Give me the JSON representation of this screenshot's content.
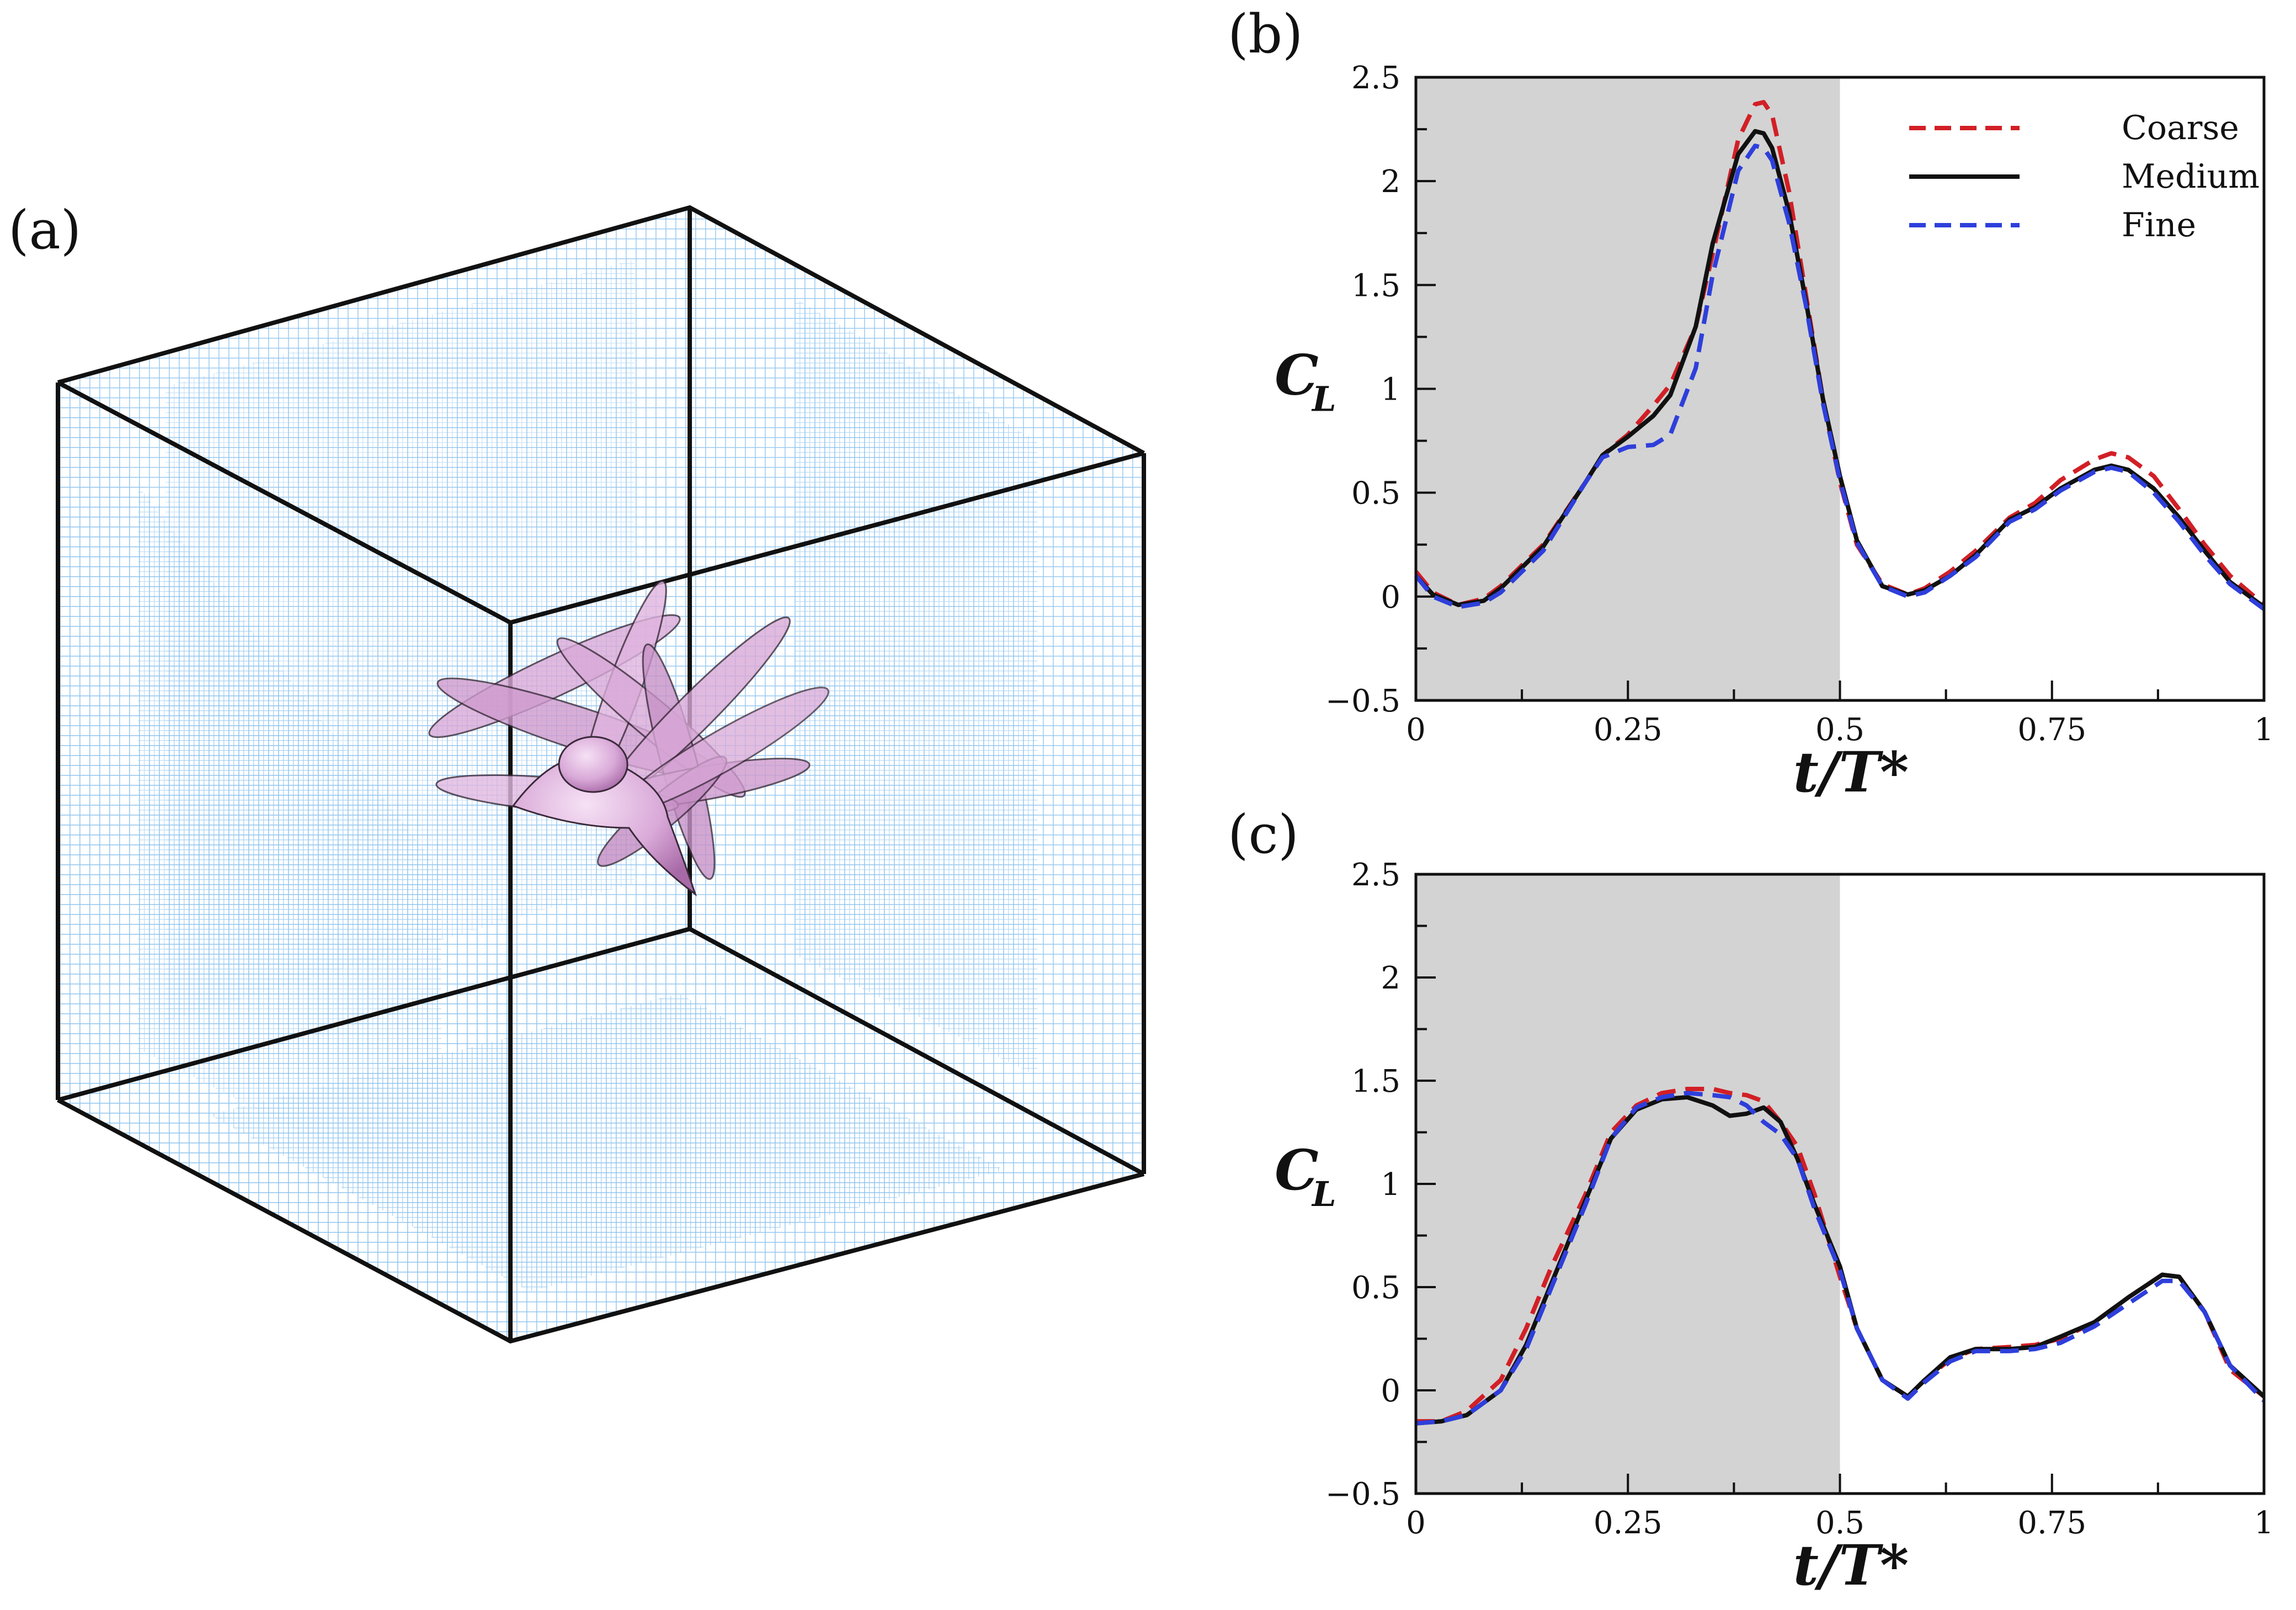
{
  "figure": {
    "panel_a_label": "(a)",
    "mesh_color": "#8fc4ee",
    "body_color": "#d9a9d8"
  },
  "chart_data": [
    {
      "type": "line",
      "panel": "(b)",
      "xlabel": "t/T*",
      "ylabel": "C_L",
      "ylabel_main": "C",
      "ylabel_sub": "L",
      "xlim": [
        0,
        1
      ],
      "ylim": [
        -0.5,
        2.5
      ],
      "xticks": [
        "0",
        "0.25",
        "0.5",
        "0.75",
        "1"
      ],
      "yticks": [
        "−0.5",
        "0",
        "0.5",
        "1",
        "1.5",
        "2",
        "2.5"
      ],
      "shaded_region": [
        0,
        0.5
      ],
      "legend_position": "top-right",
      "series": [
        {
          "name": "Coarse",
          "color": "#d21f26",
          "dash": "dashed",
          "x": [
            0,
            0.02,
            0.05,
            0.08,
            0.1,
            0.15,
            0.2,
            0.22,
            0.25,
            0.28,
            0.3,
            0.33,
            0.35,
            0.38,
            0.4,
            0.41,
            0.42,
            0.44,
            0.46,
            0.48,
            0.5,
            0.52,
            0.55,
            0.58,
            0.6,
            0.63,
            0.66,
            0.7,
            0.73,
            0.76,
            0.8,
            0.82,
            0.84,
            0.87,
            0.9,
            0.93,
            0.96,
            1.0
          ],
          "y": [
            0.12,
            0.02,
            -0.04,
            -0.01,
            0.05,
            0.25,
            0.55,
            0.68,
            0.78,
            0.92,
            1.02,
            1.3,
            1.65,
            2.2,
            2.37,
            2.38,
            2.32,
            1.95,
            1.45,
            0.95,
            0.55,
            0.25,
            0.06,
            0.01,
            0.04,
            0.12,
            0.22,
            0.38,
            0.45,
            0.56,
            0.66,
            0.69,
            0.67,
            0.58,
            0.42,
            0.25,
            0.1,
            -0.04
          ]
        },
        {
          "name": "Medium",
          "color": "#111111",
          "dash": "solid",
          "x": [
            0,
            0.02,
            0.05,
            0.08,
            0.1,
            0.15,
            0.2,
            0.22,
            0.25,
            0.28,
            0.3,
            0.33,
            0.35,
            0.38,
            0.4,
            0.41,
            0.42,
            0.44,
            0.46,
            0.48,
            0.5,
            0.52,
            0.55,
            0.58,
            0.6,
            0.63,
            0.66,
            0.7,
            0.73,
            0.76,
            0.8,
            0.82,
            0.84,
            0.87,
            0.9,
            0.93,
            0.96,
            1.0
          ],
          "y": [
            0.1,
            0.01,
            -0.04,
            -0.02,
            0.04,
            0.24,
            0.55,
            0.68,
            0.77,
            0.87,
            0.97,
            1.3,
            1.7,
            2.13,
            2.24,
            2.23,
            2.16,
            1.85,
            1.42,
            0.95,
            0.58,
            0.27,
            0.05,
            0.01,
            0.03,
            0.1,
            0.2,
            0.37,
            0.43,
            0.52,
            0.61,
            0.63,
            0.61,
            0.52,
            0.38,
            0.22,
            0.07,
            -0.05
          ]
        },
        {
          "name": "Fine",
          "color": "#2e3fdb",
          "dash": "dashed",
          "x": [
            0,
            0.02,
            0.05,
            0.08,
            0.1,
            0.15,
            0.2,
            0.22,
            0.25,
            0.28,
            0.3,
            0.33,
            0.35,
            0.38,
            0.4,
            0.41,
            0.42,
            0.44,
            0.46,
            0.48,
            0.5,
            0.52,
            0.55,
            0.58,
            0.6,
            0.63,
            0.66,
            0.7,
            0.73,
            0.76,
            0.8,
            0.82,
            0.84,
            0.87,
            0.9,
            0.93,
            0.96,
            1.0
          ],
          "y": [
            0.1,
            0.0,
            -0.05,
            -0.03,
            0.02,
            0.22,
            0.55,
            0.67,
            0.72,
            0.73,
            0.78,
            1.1,
            1.55,
            2.05,
            2.17,
            2.16,
            2.1,
            1.8,
            1.4,
            0.93,
            0.56,
            0.26,
            0.05,
            0.0,
            0.02,
            0.1,
            0.19,
            0.36,
            0.42,
            0.51,
            0.6,
            0.62,
            0.6,
            0.5,
            0.36,
            0.2,
            0.06,
            -0.06
          ]
        }
      ],
      "legend": [
        "Coarse",
        "Medium",
        "Fine"
      ]
    },
    {
      "type": "line",
      "panel": "(c)",
      "xlabel": "t/T*",
      "ylabel": "C_L",
      "ylabel_main": "C",
      "ylabel_sub": "L",
      "xlim": [
        0,
        1
      ],
      "ylim": [
        -0.5,
        2.5
      ],
      "xticks": [
        "0",
        "0.25",
        "0.5",
        "0.75",
        "1"
      ],
      "yticks": [
        "−0.5",
        "0",
        "0.5",
        "1",
        "1.5",
        "2",
        "2.5"
      ],
      "shaded_region": [
        0,
        0.5
      ],
      "series": [
        {
          "name": "Coarse",
          "color": "#d21f26",
          "dash": "dashed",
          "x": [
            0,
            0.03,
            0.06,
            0.1,
            0.13,
            0.16,
            0.2,
            0.23,
            0.26,
            0.29,
            0.32,
            0.35,
            0.37,
            0.39,
            0.41,
            0.43,
            0.45,
            0.47,
            0.5,
            0.52,
            0.55,
            0.58,
            0.6,
            0.63,
            0.66,
            0.7,
            0.73,
            0.76,
            0.8,
            0.84,
            0.88,
            0.9,
            0.93,
            0.96,
            1.0
          ],
          "y": [
            -0.15,
            -0.15,
            -0.1,
            0.05,
            0.3,
            0.6,
            0.95,
            1.25,
            1.38,
            1.44,
            1.46,
            1.46,
            1.44,
            1.43,
            1.4,
            1.3,
            1.18,
            0.95,
            0.55,
            0.3,
            0.05,
            -0.03,
            0.05,
            0.15,
            0.2,
            0.21,
            0.22,
            0.25,
            0.33,
            0.45,
            0.56,
            0.55,
            0.38,
            0.1,
            -0.03
          ]
        },
        {
          "name": "Medium",
          "color": "#111111",
          "dash": "solid",
          "x": [
            0,
            0.03,
            0.06,
            0.1,
            0.13,
            0.16,
            0.2,
            0.23,
            0.26,
            0.29,
            0.32,
            0.35,
            0.37,
            0.39,
            0.41,
            0.43,
            0.45,
            0.47,
            0.5,
            0.52,
            0.55,
            0.58,
            0.6,
            0.63,
            0.66,
            0.7,
            0.73,
            0.76,
            0.8,
            0.84,
            0.88,
            0.9,
            0.93,
            0.96,
            1.0
          ],
          "y": [
            -0.16,
            -0.15,
            -0.12,
            0.0,
            0.22,
            0.52,
            0.92,
            1.22,
            1.36,
            1.41,
            1.42,
            1.38,
            1.33,
            1.34,
            1.37,
            1.3,
            1.12,
            0.9,
            0.6,
            0.3,
            0.05,
            -0.03,
            0.05,
            0.16,
            0.2,
            0.2,
            0.21,
            0.26,
            0.33,
            0.45,
            0.56,
            0.55,
            0.38,
            0.12,
            -0.03
          ]
        },
        {
          "name": "Fine",
          "color": "#2e3fdb",
          "dash": "dashed",
          "x": [
            0,
            0.03,
            0.06,
            0.1,
            0.13,
            0.16,
            0.2,
            0.23,
            0.26,
            0.29,
            0.32,
            0.35,
            0.37,
            0.39,
            0.41,
            0.43,
            0.45,
            0.47,
            0.5,
            0.52,
            0.55,
            0.58,
            0.6,
            0.63,
            0.66,
            0.7,
            0.73,
            0.76,
            0.8,
            0.84,
            0.88,
            0.9,
            0.93,
            0.96,
            1.0
          ],
          "y": [
            -0.16,
            -0.15,
            -0.12,
            0.0,
            0.2,
            0.5,
            0.9,
            1.22,
            1.37,
            1.42,
            1.44,
            1.43,
            1.42,
            1.38,
            1.3,
            1.24,
            1.12,
            0.88,
            0.58,
            0.3,
            0.05,
            -0.04,
            0.04,
            0.14,
            0.19,
            0.19,
            0.2,
            0.23,
            0.31,
            0.42,
            0.53,
            0.53,
            0.38,
            0.12,
            -0.05
          ]
        }
      ]
    }
  ]
}
